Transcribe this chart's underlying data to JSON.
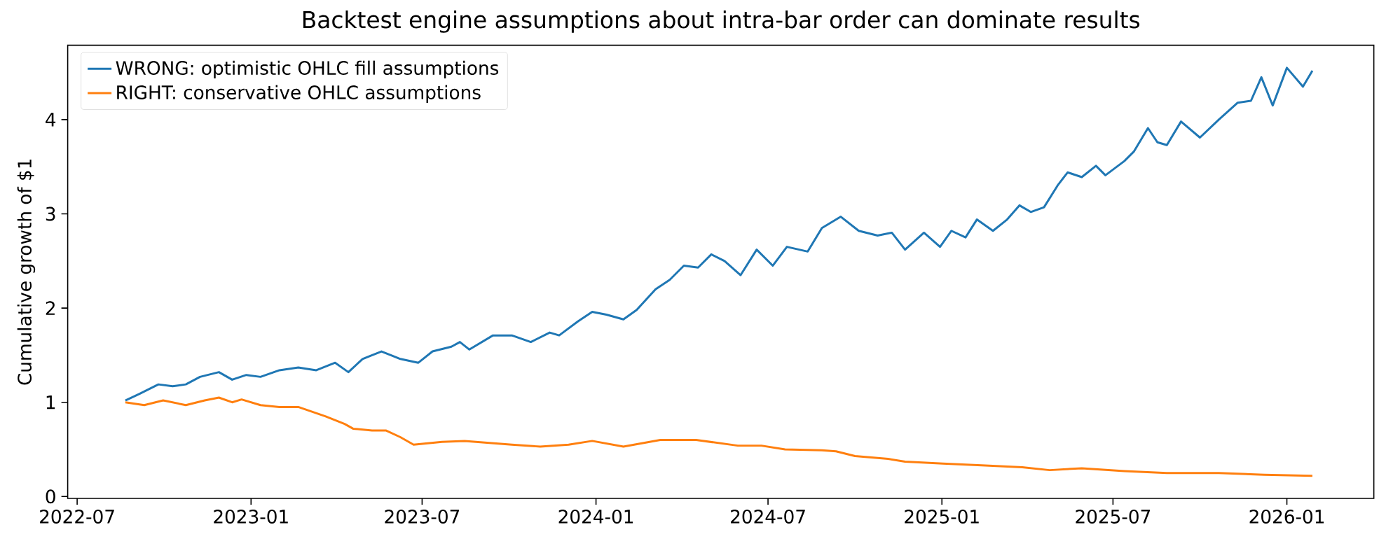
{
  "chart_data": {
    "type": "line",
    "title": "Backtest engine assumptions about intra-bar order can dominate results",
    "ylabel": "Cumulative growth of $1",
    "xlim": [
      "2022-06-21",
      "2026-04-03"
    ],
    "xticks": [
      "2022-07",
      "2023-01",
      "2023-07",
      "2024-01",
      "2024-07",
      "2025-01",
      "2025-07",
      "2026-01"
    ],
    "ylim": [
      -0.02,
      4.79
    ],
    "yticks": [
      0,
      1,
      2,
      3,
      4
    ],
    "grid": false,
    "legend": "top left",
    "series": [
      {
        "name": "WRONG: optimistic OHLC fill assumptions",
        "color": "#1f77b4",
        "x": [
          "2022-08-21",
          "2022-09-05",
          "2022-09-25",
          "2022-10-10",
          "2022-10-24",
          "2022-11-08",
          "2022-11-28",
          "2022-12-12",
          "2022-12-27",
          "2023-01-11",
          "2023-01-31",
          "2023-02-20",
          "2023-03-11",
          "2023-03-31",
          "2023-04-14",
          "2023-04-29",
          "2023-05-19",
          "2023-06-08",
          "2023-06-27",
          "2023-07-12",
          "2023-08-01",
          "2023-08-10",
          "2023-08-20",
          "2023-09-14",
          "2023-10-04",
          "2023-10-24",
          "2023-11-13",
          "2023-11-23",
          "2023-12-13",
          "2023-12-28",
          "2024-01-12",
          "2024-01-30",
          "2024-02-13",
          "2024-03-04",
          "2024-03-19",
          "2024-04-03",
          "2024-04-18",
          "2024-05-02",
          "2024-05-16",
          "2024-06-02",
          "2024-06-19",
          "2024-07-06",
          "2024-07-21",
          "2024-08-12",
          "2024-08-27",
          "2024-09-16",
          "2024-10-05",
          "2024-10-25",
          "2024-11-09",
          "2024-11-23",
          "2024-12-13",
          "2024-12-30",
          "2025-01-11",
          "2025-01-26",
          "2025-02-07",
          "2025-02-24",
          "2025-03-11",
          "2025-03-24",
          "2025-04-05",
          "2025-04-19",
          "2025-05-04",
          "2025-05-14",
          "2025-05-29",
          "2025-06-13",
          "2025-06-23",
          "2025-07-13",
          "2025-07-23",
          "2025-08-07",
          "2025-08-17",
          "2025-08-27",
          "2025-09-11",
          "2025-10-01",
          "2025-10-21",
          "2025-11-10",
          "2025-11-24",
          "2025-12-05",
          "2025-12-17",
          "2026-01-01",
          "2026-01-18",
          "2026-01-28"
        ],
        "values": [
          1.02,
          1.09,
          1.19,
          1.17,
          1.19,
          1.27,
          1.32,
          1.24,
          1.29,
          1.27,
          1.34,
          1.37,
          1.34,
          1.42,
          1.32,
          1.46,
          1.54,
          1.46,
          1.42,
          1.54,
          1.59,
          1.64,
          1.56,
          1.71,
          1.71,
          1.64,
          1.74,
          1.71,
          1.86,
          1.96,
          1.93,
          1.88,
          1.98,
          2.2,
          2.3,
          2.45,
          2.43,
          2.57,
          2.5,
          2.35,
          2.62,
          2.45,
          2.65,
          2.6,
          2.85,
          2.97,
          2.82,
          2.77,
          2.8,
          2.62,
          2.8,
          2.65,
          2.82,
          2.75,
          2.94,
          2.82,
          2.94,
          3.09,
          3.02,
          3.07,
          3.31,
          3.44,
          3.39,
          3.51,
          3.41,
          3.56,
          3.66,
          3.91,
          3.76,
          3.73,
          3.98,
          3.81,
          4.0,
          4.18,
          4.2,
          4.45,
          4.15,
          4.55,
          4.35,
          4.52
        ]
      },
      {
        "name": "RIGHT: conservative OHLC assumptions",
        "color": "#ff7f0e",
        "x": [
          "2022-08-21",
          "2022-09-10",
          "2022-09-30",
          "2022-10-24",
          "2022-11-13",
          "2022-11-28",
          "2022-12-12",
          "2022-12-22",
          "2023-01-11",
          "2023-01-31",
          "2023-02-20",
          "2023-03-21",
          "2023-04-10",
          "2023-04-19",
          "2023-05-09",
          "2023-05-24",
          "2023-06-08",
          "2023-06-22",
          "2023-07-22",
          "2023-08-15",
          "2023-10-04",
          "2023-11-03",
          "2023-12-03",
          "2023-12-28",
          "2024-01-30",
          "2024-03-09",
          "2024-04-03",
          "2024-04-16",
          "2024-05-30",
          "2024-06-24",
          "2024-07-19",
          "2024-08-27",
          "2024-09-11",
          "2024-10-01",
          "2024-11-05",
          "2024-11-23",
          "2025-01-02",
          "2025-02-16",
          "2025-03-27",
          "2025-04-25",
          "2025-05-29",
          "2025-07-13",
          "2025-08-27",
          "2025-10-21",
          "2025-12-08",
          "2026-01-28"
        ],
        "values": [
          1.0,
          0.97,
          1.02,
          0.97,
          1.02,
          1.05,
          1.0,
          1.03,
          0.97,
          0.95,
          0.95,
          0.85,
          0.77,
          0.72,
          0.7,
          0.7,
          0.63,
          0.55,
          0.58,
          0.59,
          0.55,
          0.53,
          0.55,
          0.59,
          0.53,
          0.6,
          0.6,
          0.6,
          0.54,
          0.54,
          0.5,
          0.49,
          0.48,
          0.43,
          0.4,
          0.37,
          0.35,
          0.33,
          0.31,
          0.28,
          0.3,
          0.27,
          0.25,
          0.25,
          0.23,
          0.22
        ]
      }
    ]
  }
}
